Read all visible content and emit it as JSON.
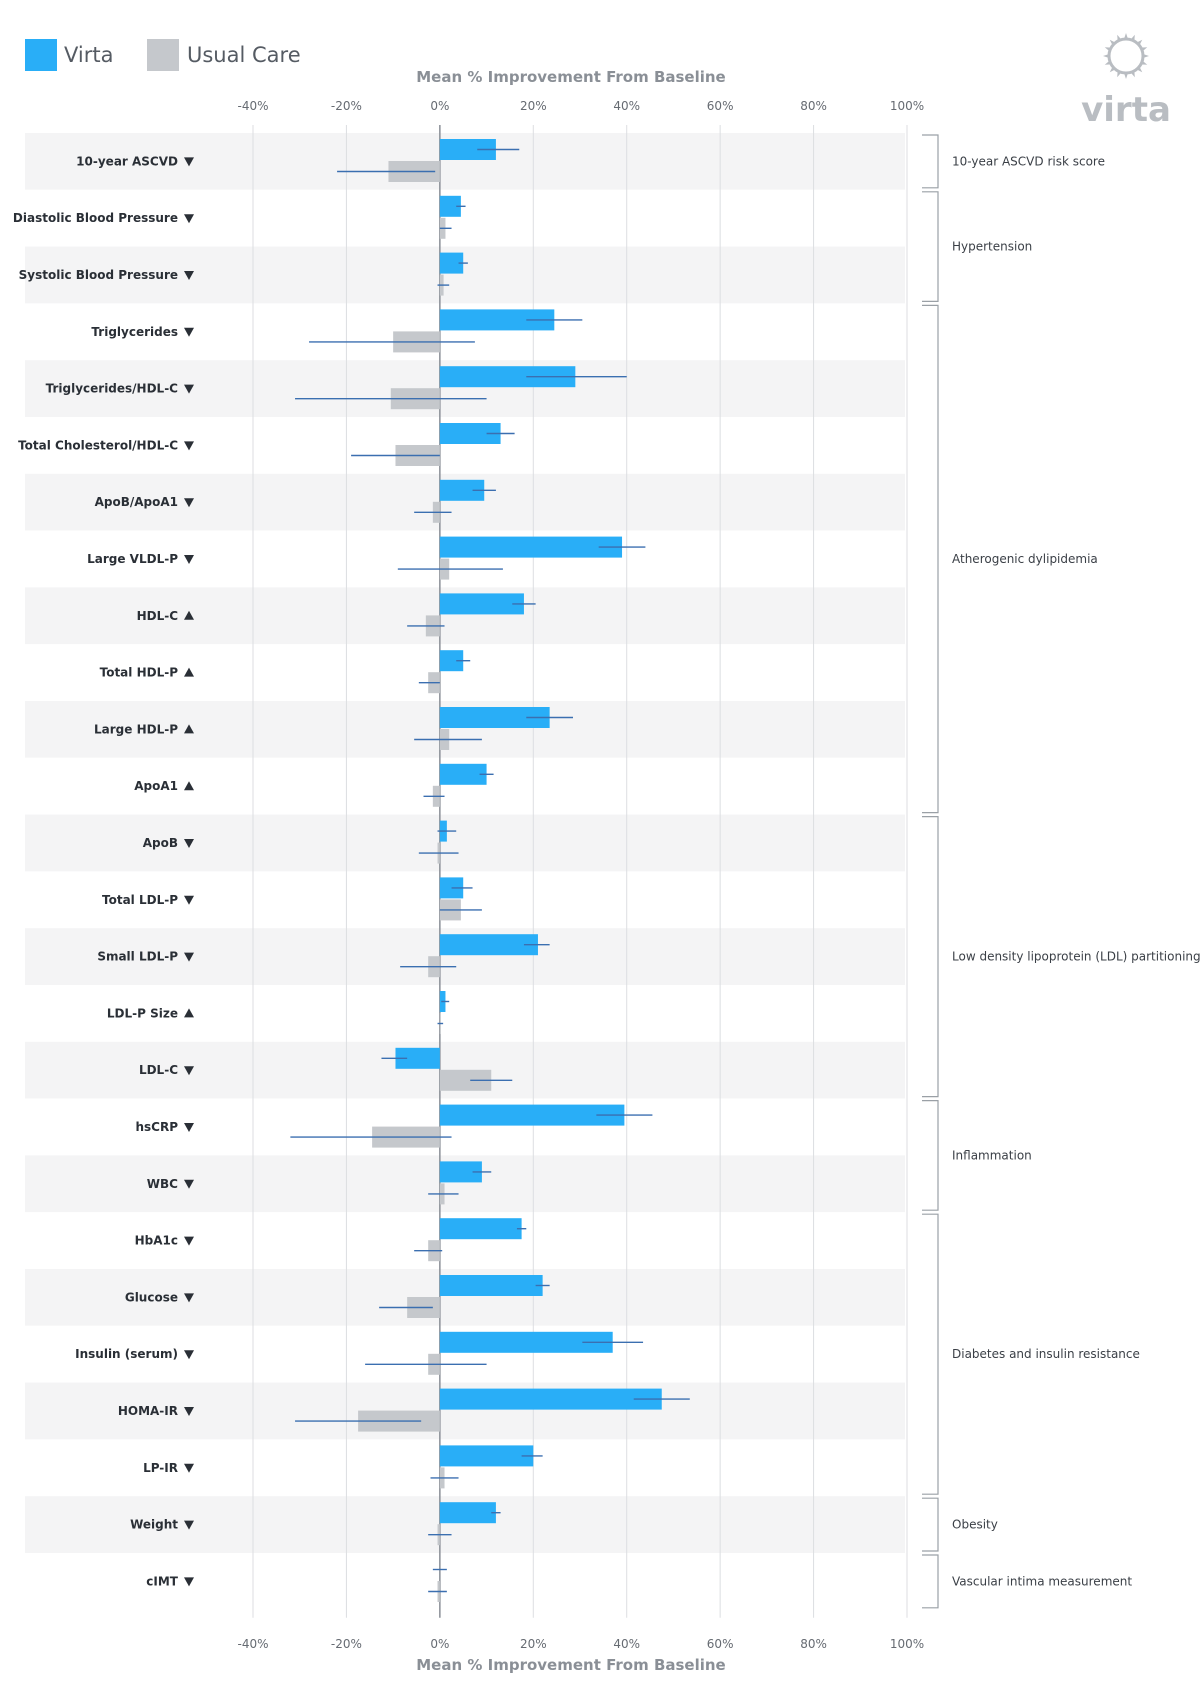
{
  "chart_data": {
    "type": "bar",
    "orientation": "horizontal",
    "xlabel": "Mean % Improvement From Baseline",
    "xlim": [
      -40,
      100
    ],
    "xticks": [
      "-40%",
      "-20%",
      "0%",
      "20%",
      "40%",
      "60%",
      "80%",
      "100%"
    ],
    "xtick_values": [
      -40,
      -20,
      0,
      20,
      40,
      60,
      80,
      100
    ],
    "grid": true,
    "legend_position": "top-left",
    "series": [
      {
        "name": "Virta",
        "color": "#29aef7"
      },
      {
        "name": "Usual Care",
        "color": "#c5c8cc"
      }
    ],
    "error_bar_color": "#3b6fb0",
    "rows": [
      {
        "label": "10-year ASCVD",
        "arrow": "down",
        "virta": 12,
        "virta_err": [
          8,
          17
        ],
        "usual": -11,
        "usual_err": [
          -22,
          -1
        ]
      },
      {
        "label": "Diastolic Blood Pressure",
        "arrow": "down",
        "virta": 4.5,
        "virta_err": [
          3.5,
          5.5
        ],
        "usual": 1.2,
        "usual_err": [
          0,
          2.5
        ]
      },
      {
        "label": "Systolic Blood Pressure",
        "arrow": "down",
        "virta": 5,
        "virta_err": [
          4,
          6
        ],
        "usual": 0.8,
        "usual_err": [
          -0.5,
          2
        ]
      },
      {
        "label": "Triglycerides",
        "arrow": "down",
        "virta": 24.5,
        "virta_err": [
          18.5,
          30.5
        ],
        "usual": -10,
        "usual_err": [
          -28,
          7.5
        ]
      },
      {
        "label": "Triglycerides/HDL-C",
        "arrow": "down",
        "virta": 29,
        "virta_err": [
          18.5,
          40
        ],
        "usual": -10.5,
        "usual_err": [
          -31,
          10
        ]
      },
      {
        "label": "Total Cholesterol/HDL-C",
        "arrow": "down",
        "virta": 13,
        "virta_err": [
          10,
          16
        ],
        "usual": -9.5,
        "usual_err": [
          -19,
          0
        ]
      },
      {
        "label": "ApoB/ApoA1",
        "arrow": "down",
        "virta": 9.5,
        "virta_err": [
          7,
          12
        ],
        "usual": -1.5,
        "usual_err": [
          -5.5,
          2.5
        ]
      },
      {
        "label": "Large VLDL-P",
        "arrow": "down",
        "virta": 39,
        "virta_err": [
          34,
          44
        ],
        "usual": 2,
        "usual_err": [
          -9,
          13.5
        ]
      },
      {
        "label": "HDL-C",
        "arrow": "up",
        "virta": 18,
        "virta_err": [
          15.5,
          20.5
        ],
        "usual": -3,
        "usual_err": [
          -7,
          1
        ]
      },
      {
        "label": "Total HDL-P",
        "arrow": "up",
        "virta": 5,
        "virta_err": [
          3.5,
          6.5
        ],
        "usual": -2.5,
        "usual_err": [
          -4.5,
          0
        ]
      },
      {
        "label": "Large HDL-P",
        "arrow": "up",
        "virta": 23.5,
        "virta_err": [
          18.5,
          28.5
        ],
        "usual": 2,
        "usual_err": [
          -5.5,
          9
        ]
      },
      {
        "label": "ApoA1",
        "arrow": "up",
        "virta": 10,
        "virta_err": [
          8.5,
          11.5
        ],
        "usual": -1.5,
        "usual_err": [
          -3.5,
          1
        ]
      },
      {
        "label": "ApoB",
        "arrow": "down",
        "virta": 1.5,
        "virta_err": [
          -0.5,
          3.5
        ],
        "usual": -0.5,
        "usual_err": [
          -4.5,
          4
        ]
      },
      {
        "label": "Total LDL-P",
        "arrow": "down",
        "virta": 5,
        "virta_err": [
          2.5,
          7
        ],
        "usual": 4.5,
        "usual_err": [
          0,
          9
        ]
      },
      {
        "label": "Small LDL-P",
        "arrow": "down",
        "virta": 21,
        "virta_err": [
          18,
          23.5
        ],
        "usual": -2.5,
        "usual_err": [
          -8.5,
          3.5
        ]
      },
      {
        "label": "LDL-P Size",
        "arrow": "up",
        "virta": 1.2,
        "virta_err": [
          0.3,
          2
        ],
        "usual": 0.1,
        "usual_err": [
          -0.5,
          0.7
        ]
      },
      {
        "label": "LDL-C",
        "arrow": "down",
        "virta": -9.5,
        "virta_err": [
          -12.5,
          -7
        ],
        "usual": 11,
        "usual_err": [
          6.5,
          15.5
        ]
      },
      {
        "label": "hsCRP",
        "arrow": "down",
        "virta": 39.5,
        "virta_err": [
          33.5,
          45.5
        ],
        "usual": -14.5,
        "usual_err": [
          -32,
          2.5
        ]
      },
      {
        "label": "WBC",
        "arrow": "down",
        "virta": 9,
        "virta_err": [
          7,
          11
        ],
        "usual": 1,
        "usual_err": [
          -2.5,
          4
        ]
      },
      {
        "label": "HbA1c",
        "arrow": "down",
        "virta": 17.5,
        "virta_err": [
          16.5,
          18.5
        ],
        "usual": -2.5,
        "usual_err": [
          -5.5,
          0.5
        ]
      },
      {
        "label": "Glucose",
        "arrow": "down",
        "virta": 22,
        "virta_err": [
          20.5,
          23.5
        ],
        "usual": -7,
        "usual_err": [
          -13,
          -1.5
        ]
      },
      {
        "label": "Insulin (serum)",
        "arrow": "down",
        "virta": 37,
        "virta_err": [
          30.5,
          43.5
        ],
        "usual": -2.5,
        "usual_err": [
          -16,
          10
        ]
      },
      {
        "label": "HOMA-IR",
        "arrow": "down",
        "virta": 47.5,
        "virta_err": [
          41.5,
          53.5
        ],
        "usual": -17.5,
        "usual_err": [
          -31,
          -4
        ]
      },
      {
        "label": "LP-IR",
        "arrow": "down",
        "virta": 20,
        "virta_err": [
          17.5,
          22
        ],
        "usual": 1,
        "usual_err": [
          -2,
          4
        ]
      },
      {
        "label": "Weight",
        "arrow": "down",
        "virta": 12,
        "virta_err": [
          11,
          13
        ],
        "usual": -0.5,
        "usual_err": [
          -2.5,
          2.5
        ]
      },
      {
        "label": "cIMT",
        "arrow": "down",
        "virta": 0,
        "virta_err": [
          -1.5,
          1.5
        ],
        "usual": -0.5,
        "usual_err": [
          -2.5,
          1.5
        ]
      }
    ],
    "groups": [
      {
        "label": "10-year ASCVD risk score",
        "start": 0,
        "end": 0
      },
      {
        "label": "Hypertension",
        "start": 1,
        "end": 2
      },
      {
        "label": "Atherogenic dylipidemia",
        "start": 3,
        "end": 11
      },
      {
        "label": "Low density lipoprotein (LDL) partitioning",
        "start": 12,
        "end": 16
      },
      {
        "label": "Inflammation",
        "start": 17,
        "end": 18
      },
      {
        "label": "Diabetes and insulin resistance",
        "start": 19,
        "end": 23
      },
      {
        "label": "Obesity",
        "start": 24,
        "end": 24
      },
      {
        "label": "Vascular intima measurement",
        "start": 25,
        "end": 25
      }
    ]
  },
  "legend": {
    "virta_label": "Virta",
    "usual_label": "Usual Care"
  },
  "brand": {
    "logo_text": "virta",
    "logo_color": "#b9bdc2"
  }
}
